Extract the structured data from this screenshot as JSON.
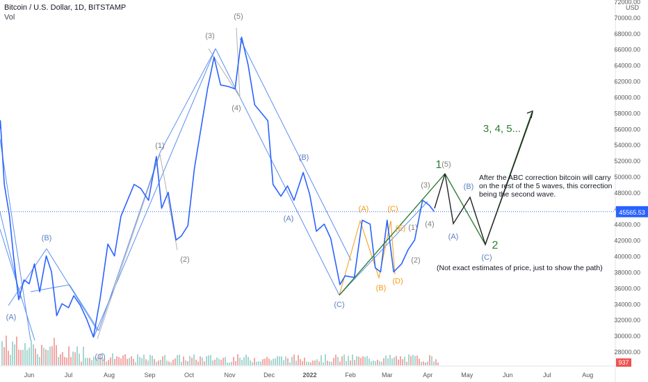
{
  "header": {
    "symbol_line": "Bitcoin / U.S. Dollar, 1D, BITSTAMP",
    "volume_label": "Vol"
  },
  "price_axis": {
    "currency": "USD",
    "current_price": "45565.53",
    "volume_value": "937",
    "current_price_color": "#2962ff",
    "volume_badge_color": "#ef5350"
  },
  "notes": {
    "main": "After the ABC correction bitcoin will carry on the rest of the 5 waves, this correction being the second wave.",
    "disclaimer": "(Not exact estimates of price, just to show the path)",
    "big_waves": "3, 4, 5...",
    "wave1": "1",
    "wave2": "2"
  },
  "colors": {
    "price_line": "#2962ff",
    "channel": "#5b8ff0",
    "gray_label": "#808080",
    "blue_label": "#5a7fc0",
    "orange_label": "#f39c12",
    "green": "#2e7d32",
    "black_path": "#222222",
    "vol_up": "#f2a7a5",
    "vol_down": "#a6d6cf"
  },
  "chart_data": {
    "type": "line",
    "title": "Bitcoin / U.S. Dollar, 1D, BITSTAMP",
    "xlabel": "",
    "ylabel": "USD",
    "ylim": [
      27000,
      72000
    ],
    "grid": false,
    "x_tick_labels": [
      "Jun",
      "Jul",
      "Aug",
      "Sep",
      "Oct",
      "Nov",
      "Dec",
      "2022",
      "Feb",
      "Mar",
      "Apr",
      "May",
      "Jun",
      "Jul",
      "Aug"
    ],
    "y_tick_labels": [
      "28000.00",
      "30000.00",
      "32000.00",
      "34000.00",
      "36000.00",
      "38000.00",
      "40000.00",
      "42000.00",
      "44000.00",
      "46000.00",
      "48000.00",
      "50000.00",
      "52000.00",
      "54000.00",
      "56000.00",
      "58000.00",
      "60000.00",
      "62000.00",
      "64000.00",
      "66000.00",
      "68000.00",
      "70000.00",
      "72000.00"
    ],
    "series": [
      {
        "values_note": "daily closes, estimated",
        "dates": [
          "2021-05-10",
          "2021-05-13",
          "2021-05-17",
          "2021-05-20",
          "2021-05-24",
          "2021-05-28",
          "2021-06-01",
          "2021-06-05",
          "2021-06-09",
          "2021-06-14",
          "2021-06-18",
          "2021-06-22",
          "2021-06-26",
          "2021-07-01",
          "2021-07-05",
          "2021-07-10",
          "2021-07-15",
          "2021-07-20",
          "2021-07-25",
          "2021-07-31",
          "2021-08-05",
          "2021-08-10",
          "2021-08-15",
          "2021-08-20",
          "2021-08-25",
          "2021-08-31",
          "2021-09-06",
          "2021-09-10",
          "2021-09-15",
          "2021-09-21",
          "2021-09-25",
          "2021-09-30",
          "2021-10-05",
          "2021-10-10",
          "2021-10-15",
          "2021-10-20",
          "2021-10-25",
          "2021-10-31",
          "2021-11-05",
          "2021-11-10",
          "2021-11-15",
          "2021-11-20",
          "2021-11-25",
          "2021-11-30",
          "2021-12-04",
          "2021-12-10",
          "2021-12-15",
          "2021-12-20",
          "2021-12-27",
          "2022-01-01",
          "2022-01-06",
          "2022-01-12",
          "2022-01-17",
          "2022-01-24",
          "2022-01-28",
          "2022-02-04",
          "2022-02-10",
          "2022-02-16",
          "2022-02-20",
          "2022-02-24",
          "2022-03-01",
          "2022-03-06",
          "2022-03-12",
          "2022-03-17",
          "2022-03-22",
          "2022-03-28",
          "2022-04-02",
          "2022-04-06"
        ],
        "values": [
          57000,
          49000,
          45000,
          40000,
          34500,
          37000,
          36500,
          39000,
          35500,
          40000,
          38000,
          32500,
          34000,
          33500,
          35000,
          33800,
          32000,
          29800,
          34500,
          41500,
          40000,
          45000,
          47000,
          49000,
          48500,
          47000,
          52500,
          46000,
          48000,
          42000,
          42500,
          43800,
          51000,
          56000,
          61000,
          65000,
          61500,
          61300,
          61000,
          67500,
          64000,
          59000,
          58000,
          57000,
          49000,
          47500,
          48800,
          47000,
          50500,
          47700,
          43100,
          44000,
          42200,
          36400,
          37500,
          37300,
          44500,
          44000,
          38500,
          38000,
          44500,
          38000,
          39000,
          40800,
          42000,
          47000,
          46400,
          45565
        ]
      }
    ]
  }
}
